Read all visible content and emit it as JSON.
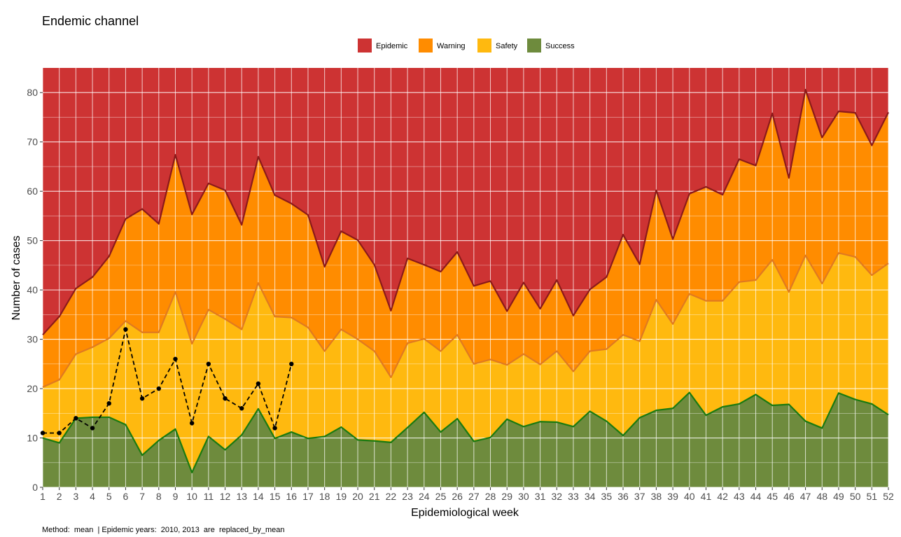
{
  "chart_data": {
    "type": "area",
    "title": "Endemic channel",
    "xlabel": "Epidemiological week",
    "ylabel": "Number of cases",
    "caption": "Method:  mean  | Epidemic years:  2010, 2013  are  replaced_by_mean",
    "x": [
      1,
      2,
      3,
      4,
      5,
      6,
      7,
      8,
      9,
      10,
      11,
      12,
      13,
      14,
      15,
      16,
      17,
      18,
      19,
      20,
      21,
      22,
      23,
      24,
      25,
      26,
      27,
      28,
      29,
      30,
      31,
      32,
      33,
      34,
      35,
      36,
      37,
      38,
      39,
      40,
      41,
      42,
      43,
      44,
      45,
      46,
      47,
      48,
      49,
      50,
      51,
      52
    ],
    "xlim": [
      1,
      52
    ],
    "ylim": [
      0,
      85
    ],
    "yticks": [
      0,
      10,
      20,
      30,
      40,
      50,
      60,
      70,
      80
    ],
    "grid": true,
    "legend_position": "top",
    "legend": [
      {
        "name": "Epidemic",
        "color": "#cd3333"
      },
      {
        "name": "Warning",
        "color": "#ff8c00"
      },
      {
        "name": "Safety",
        "color": "#ffb90f"
      },
      {
        "name": "Success",
        "color": "#6e8b3d"
      }
    ],
    "bands": [
      {
        "name": "Success",
        "color": "#6e8b3d",
        "line_color": "#1a7a10",
        "values": [
          10,
          9,
          14,
          14.2,
          14.2,
          12.7,
          6.5,
          9.5,
          11.8,
          3,
          10.3,
          7.6,
          10.6,
          15.9,
          9.9,
          11.2,
          9.9,
          10.3,
          12.2,
          9.6,
          9.4,
          9.1,
          12.1,
          15.2,
          11.2,
          13.9,
          9.3,
          10.1,
          13.8,
          12.3,
          13.3,
          13.2,
          12.3,
          15.4,
          13.4,
          10.5,
          14.1,
          15.6,
          16,
          19.2,
          14.6,
          16.3,
          16.9,
          18.8,
          16.6,
          16.8,
          13.4,
          12,
          19.1,
          17.8,
          16.9,
          14.7
        ]
      },
      {
        "name": "Safety",
        "color": "#ffb90f",
        "line_color": "#e07a20",
        "values": [
          20.3,
          21.8,
          27,
          28.4,
          30.2,
          33.7,
          31.4,
          31.4,
          39.6,
          29.1,
          36,
          34.1,
          32,
          41.4,
          34.6,
          34.4,
          32.4,
          27.6,
          32,
          30,
          27.6,
          22.3,
          29.2,
          30.1,
          27.6,
          30.9,
          25,
          25.9,
          24.8,
          27,
          24.9,
          27.6,
          23.5,
          27.6,
          28,
          30.9,
          29.6,
          38,
          33.1,
          39.2,
          37.8,
          37.8,
          41.6,
          42,
          46.1,
          39.6,
          47,
          41.3,
          47.5,
          46.7,
          43,
          45.4
        ]
      },
      {
        "name": "Warning",
        "color": "#ff8c00",
        "line_color": "#8b1a1a",
        "values": [
          30.9,
          34.6,
          40.3,
          42.6,
          46.8,
          54.4,
          56.4,
          53.4,
          67.4,
          55.3,
          61.6,
          60.2,
          53.2,
          67,
          59.2,
          57.5,
          55.2,
          44.7,
          51.9,
          50.1,
          45.1,
          35.8,
          46.4,
          45.1,
          43.7,
          47.7,
          40.8,
          41.8,
          35.7,
          41.5,
          36.2,
          42,
          34.8,
          40.1,
          42.6,
          51.2,
          45.2,
          60.2,
          50.3,
          59.5,
          60.9,
          59.3,
          66.5,
          65.2,
          75.8,
          62.7,
          80.6,
          70.9,
          76.2,
          75.9,
          69.3,
          76
        ]
      }
    ],
    "current": {
      "x": [
        1,
        2,
        3,
        4,
        5,
        6,
        7,
        8,
        9,
        10,
        11,
        12,
        13,
        14,
        15,
        16
      ],
      "y": [
        11,
        11,
        14,
        12,
        17,
        32,
        18,
        20,
        26,
        13,
        25,
        18,
        16,
        21,
        12,
        25
      ]
    }
  },
  "colors": {
    "epidemic_fill": "#cd3333",
    "grid": "#ffffff"
  }
}
